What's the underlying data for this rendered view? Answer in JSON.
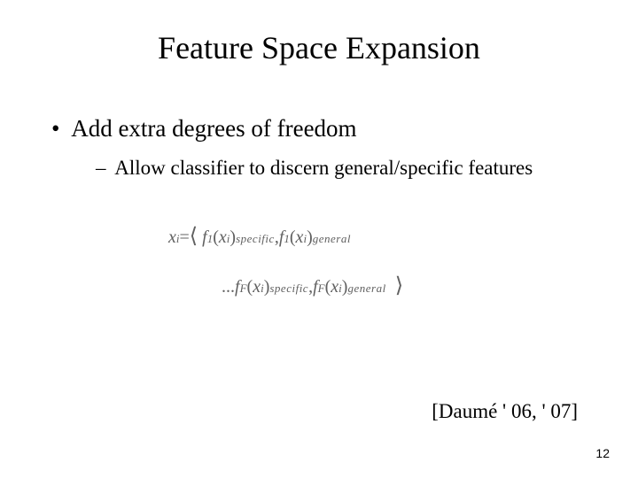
{
  "slide": {
    "title": "Feature Space Expansion",
    "bullet_main": "Add extra degrees of freedom",
    "bullet_sub": "Allow classifier to discern general/specific features",
    "formula": {
      "var": "x",
      "var_sub": "i",
      "eq": " = ",
      "angle_l": "⟨",
      "angle_r": "⟩",
      "f1": "f",
      "f1_sub": "1",
      "fF": "f",
      "fF_sub": "F",
      "arg_open": "(",
      "arg_close": ")",
      "arg_var": "x",
      "arg_sub": "i",
      "sup_specific": "specific",
      "sup_general": "general",
      "comma": ", ",
      "ellipsis": "..."
    },
    "citation": "[Daumé ' 06, ' 07]",
    "page_number": "12"
  },
  "colors": {
    "text": "#000000",
    "formula": "#606060",
    "background": "#ffffff"
  },
  "fonts": {
    "title_size": 36,
    "bullet_main_size": 27,
    "bullet_sub_size": 23,
    "formula_size": 20,
    "citation_size": 23,
    "page_number_size": 14
  }
}
